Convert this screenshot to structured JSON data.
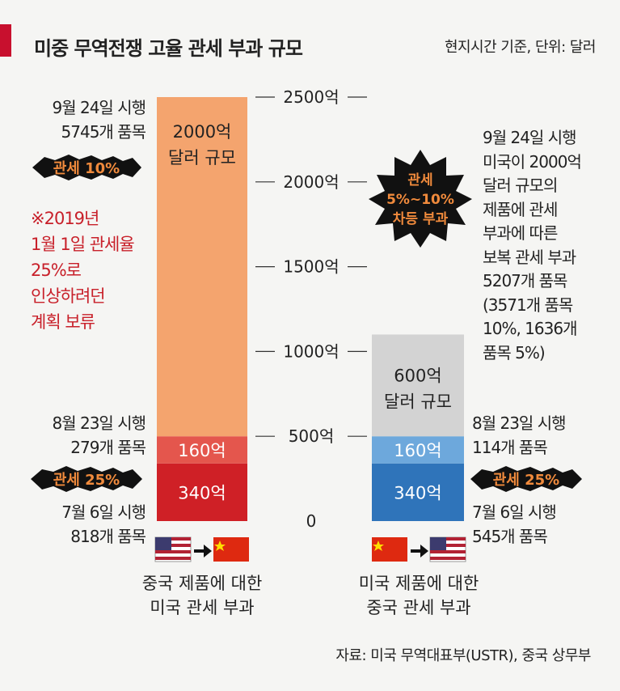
{
  "title": "미중 무역전쟁 고율 관세 부과 규모",
  "unit_note": "현지시간 기준, 단위: 달러",
  "source": "자료: 미국 무역대표부(USTR), 중국 상무부",
  "colors": {
    "accent": "#c8102e",
    "us_round3": "#f4a46e",
    "us_round2": "#e4564d",
    "us_round1": "#cf2026",
    "cn_round3": "#d3d3d3",
    "cn_round2": "#6da8dc",
    "cn_round1": "#2f74ba"
  },
  "left_annotations": {
    "round3_date": "9월 24일 시행",
    "round3_items": "5745개 품목",
    "round3_tariff_badge": "관세 10%",
    "note_lines": [
      "※2019년",
      "1월 1일 관세율",
      "25%로",
      "인상하려던",
      "계획 보류"
    ],
    "round2_date": "8월 23일 시행",
    "round2_items": "279개 품목",
    "round12_tariff_badge": "관세 25%",
    "round1_date": "7월 6일 시행",
    "round1_items": "818개 품목"
  },
  "right_annotations": {
    "round3_tariff_badge_lines": [
      "관세",
      "5%~10%",
      "차등 부과"
    ],
    "round3_text_lines": [
      "9월 24일 시행",
      "미국이 2000억",
      "달러 규모의",
      "제품에 관세",
      "부과에 따른",
      "보복 관세 부과",
      "5207개 품목",
      "(3571개 품목",
      "10%, 1636개",
      "품목 5%)"
    ],
    "round2_date": "8월 23일 시행",
    "round2_items": "114개 품목",
    "round12_tariff_badge": "관세 25%",
    "round1_date": "7월 6일 시행",
    "round1_items": "545개 품목"
  },
  "chart_data": {
    "type": "bar",
    "stacked": true,
    "categories": [
      "중국 제품에 대한 미국 관세 부과",
      "미국 제품에 대한 중국 관세 부과"
    ],
    "category_label_lines": [
      [
        "중국 제품에 대한",
        "미국 관세 부과"
      ],
      [
        "미국 제품에 대한",
        "중국 관세 부과"
      ]
    ],
    "series": [
      {
        "name": "7월 6일 시행",
        "values": [
          340,
          340
        ],
        "labels": [
          "340억",
          "340억"
        ]
      },
      {
        "name": "8월 23일 시행",
        "values": [
          160,
          160
        ],
        "labels": [
          "160억",
          "160억"
        ]
      },
      {
        "name": "9월 24일 시행",
        "values": [
          2000,
          600
        ],
        "labels": [
          [
            "2000억",
            "달러 규모"
          ],
          [
            "600억",
            "달러 규모"
          ]
        ]
      }
    ],
    "yticks": [
      0,
      500,
      1000,
      1500,
      2000,
      2500
    ],
    "ytick_labels": [
      "0",
      "500억",
      "1000억",
      "1500억",
      "2000억",
      "2500억"
    ],
    "ylim": [
      0,
      2500
    ],
    "grid": false,
    "legend": "none"
  }
}
